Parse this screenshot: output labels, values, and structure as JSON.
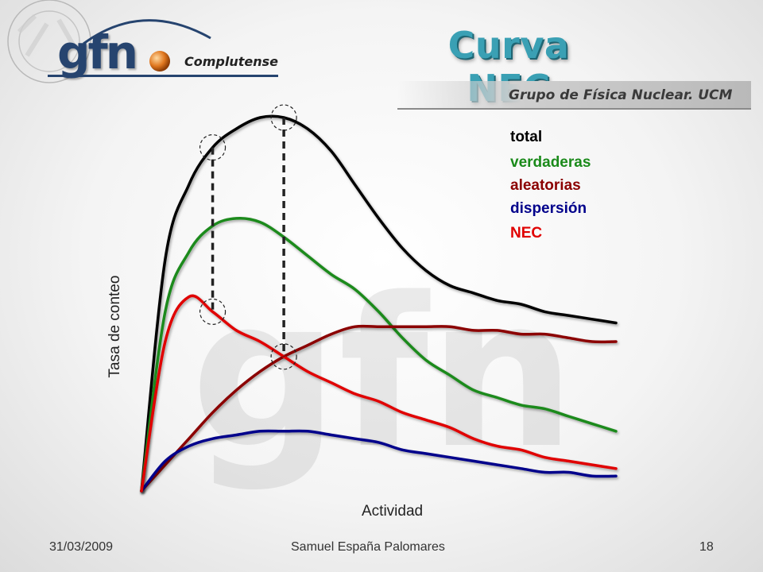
{
  "slide": {
    "title": "Curva NEC",
    "group_name": "Grupo de Física Nuclear. UCM",
    "logo": {
      "mark": "gfn",
      "subtitle": "Complutense",
      "seal_text": "UNIVERSIDAD COMPLUTENSE MATRITENSIS"
    },
    "footer": {
      "date": "31/03/2009",
      "author": "Samuel España Palomares",
      "page": "18"
    }
  },
  "chart_data": {
    "type": "line",
    "title": "",
    "xlabel": "Actividad",
    "ylabel": "Tasa de conteo",
    "xlim": [
      0,
      100
    ],
    "ylim": [
      0,
      100
    ],
    "x": [
      0,
      5,
      10,
      15,
      20,
      25,
      30,
      35,
      40,
      45,
      50,
      55,
      60,
      65,
      70,
      75,
      80,
      85,
      90,
      95,
      100
    ],
    "series": [
      {
        "name": "total",
        "color": "#000000",
        "values": [
          0,
          62,
          82,
          92,
          97,
          100,
          100,
          97,
          91,
          82,
          73,
          65,
          59,
          55,
          53,
          51,
          50,
          48,
          47,
          46,
          45
        ]
      },
      {
        "name": "verdaderas",
        "color": "#1a8a1a",
        "values": [
          0,
          48,
          64,
          71,
          73,
          72,
          68,
          63,
          58,
          54,
          48,
          41,
          35,
          31,
          27,
          25,
          23,
          22,
          20,
          18,
          16
        ]
      },
      {
        "name": "aleatorias",
        "color": "#8b0000",
        "values": [
          0,
          7,
          14,
          21,
          27,
          32,
          36,
          39,
          42,
          44,
          44,
          44,
          44,
          44,
          43,
          43,
          42,
          42,
          41,
          40,
          40
        ]
      },
      {
        "name": "dispersión",
        "color": "#00008b",
        "values": [
          0,
          8,
          12,
          14,
          15,
          16,
          16,
          16,
          15,
          14,
          13,
          11,
          10,
          9,
          8,
          7,
          6,
          5,
          5,
          4,
          4
        ]
      },
      {
        "name": "NEC",
        "color": "#e00000",
        "values": [
          0,
          40,
          52,
          48,
          43,
          40,
          36,
          32,
          29,
          26,
          24,
          21,
          19,
          17,
          14,
          12,
          11,
          9,
          8,
          7,
          6
        ]
      }
    ],
    "annotations": {
      "marker_pairs": [
        {
          "x": 15,
          "series_top": "total",
          "series_bottom": "NEC"
        },
        {
          "x": 30,
          "series_top": "total",
          "series_bottom": "NEC"
        }
      ]
    },
    "legend_position": "top-right",
    "grid": false
  }
}
